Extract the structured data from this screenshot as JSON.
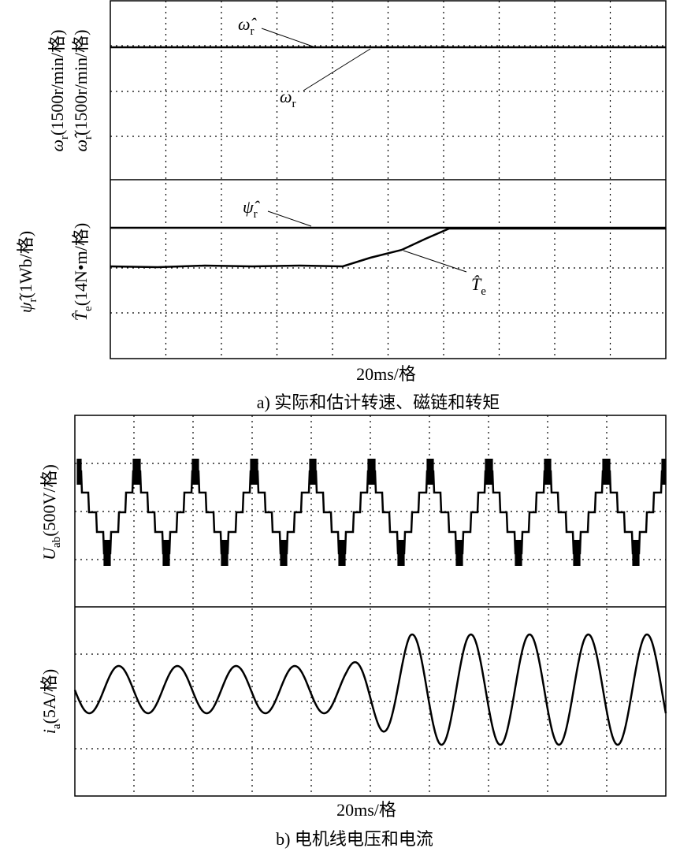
{
  "panel_a": {
    "top_ylabel_1": {
      "symbol": "ω",
      "sub": "r",
      "unit": "(1500r/min/格)"
    },
    "top_ylabel_2": {
      "symbol": "ω̂",
      "sub": "r",
      "unit": "(1500r/min/格)"
    },
    "bottom_ylabel_1": {
      "symbol": "ψ̂",
      "sub": "r",
      "unit": "(1Wb/格)"
    },
    "bottom_ylabel_2": {
      "symbol": "T̂",
      "sub": "e",
      "unit": "(14N•m/格)"
    },
    "annotations": [
      {
        "symbol": "ω̂",
        "sub": "r"
      },
      {
        "symbol": "ω",
        "sub": "r"
      },
      {
        "symbol": "ψ̂",
        "sub": "r"
      },
      {
        "symbol": "T̂",
        "sub": "e"
      }
    ],
    "xlabel": "20ms/格",
    "caption": "a)  实际和估计转速、磁链和转矩"
  },
  "panel_b": {
    "top_ylabel": {
      "symbol": "U",
      "sub": "ab",
      "unit": "(500V/格)"
    },
    "bottom_ylabel": {
      "symbol": "i",
      "sub": "a",
      "unit": "(5A/格)"
    },
    "xlabel": "20ms/格",
    "caption": "b)  电机线电压和电流"
  }
}
